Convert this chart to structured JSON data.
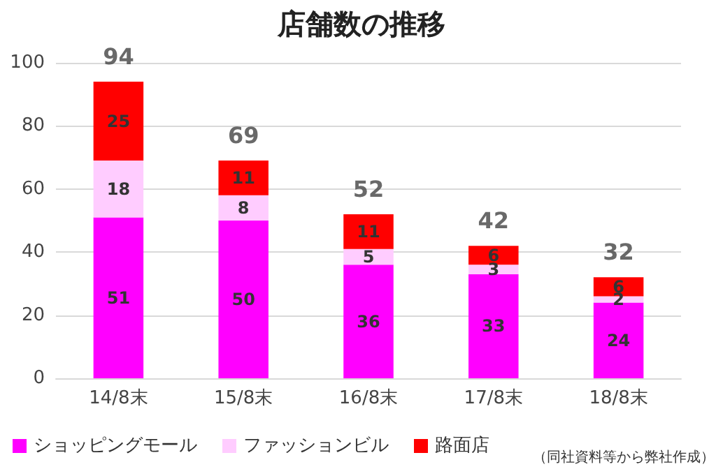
{
  "chart_data": {
    "type": "bar",
    "title": "店舗数の推移",
    "categories": [
      "14/8末",
      "15/8末",
      "16/8末",
      "17/8末",
      "18/8末"
    ],
    "series": [
      {
        "name": "ショッピングモール",
        "color": "#ff00ff",
        "values": [
          51,
          50,
          36,
          33,
          24
        ]
      },
      {
        "name": "ファッションビル",
        "color": "#ffccff",
        "values": [
          18,
          8,
          5,
          3,
          2
        ]
      },
      {
        "name": "路面店",
        "color": "#ff0000",
        "values": [
          25,
          11,
          11,
          6,
          6
        ]
      }
    ],
    "stacked": true,
    "data_labels": true,
    "totals": [
      "94",
      "69",
      "52",
      "42",
      "32"
    ],
    "ylim": [
      0,
      100
    ],
    "yticks": [
      0,
      20,
      40,
      60,
      80,
      100
    ],
    "grid": "y",
    "legend": "bottom",
    "annotations": [
      "（同社資料等から弊社作成）"
    ]
  }
}
